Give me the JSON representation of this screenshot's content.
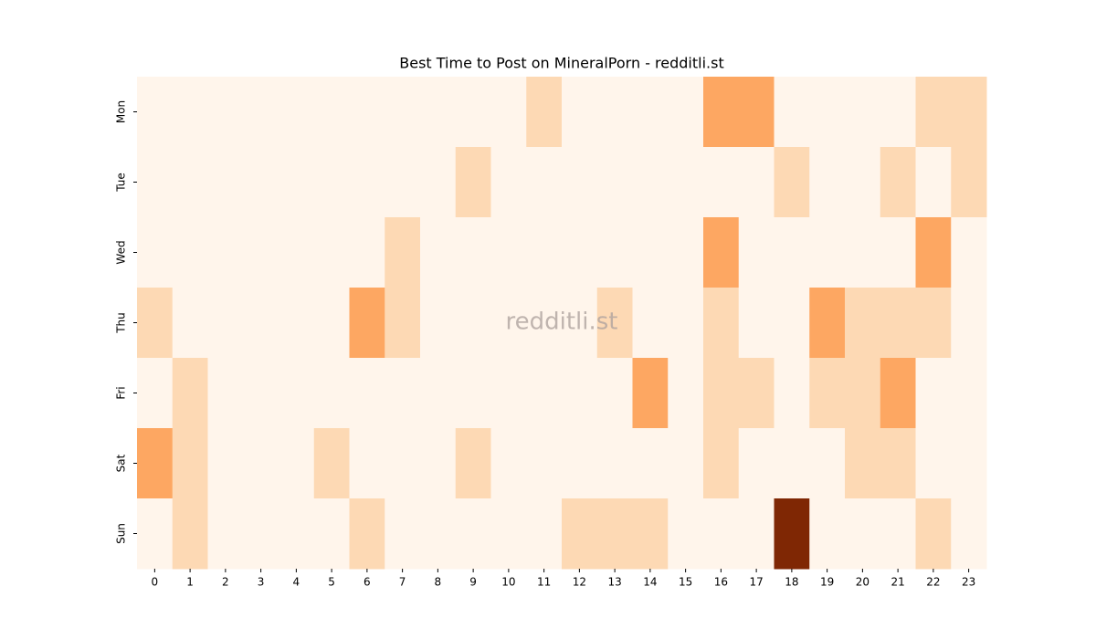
{
  "chart_data": {
    "type": "heatmap",
    "title": "Best Time to Post on MineralPorn - redditli.st",
    "watermark": "redditli.st",
    "x": [
      0,
      1,
      2,
      3,
      4,
      5,
      6,
      7,
      8,
      9,
      10,
      11,
      12,
      13,
      14,
      15,
      16,
      17,
      18,
      19,
      20,
      21,
      22,
      23
    ],
    "categories": [
      "Mon",
      "Tue",
      "Wed",
      "Thu",
      "Fri",
      "Sat",
      "Sun"
    ],
    "values": [
      [
        0,
        0,
        0,
        0,
        0,
        0,
        0,
        0,
        0,
        0,
        0,
        1,
        0,
        0,
        0,
        0,
        2,
        2,
        0,
        0,
        0,
        0,
        1,
        1
      ],
      [
        0,
        0,
        0,
        0,
        0,
        0,
        0,
        0,
        0,
        1,
        0,
        0,
        0,
        0,
        0,
        0,
        0,
        0,
        1,
        0,
        0,
        1,
        0,
        1
      ],
      [
        0,
        0,
        0,
        0,
        0,
        0,
        0,
        1,
        0,
        0,
        0,
        0,
        0,
        0,
        0,
        0,
        2,
        0,
        0,
        0,
        0,
        0,
        2,
        0
      ],
      [
        1,
        0,
        0,
        0,
        0,
        0,
        2,
        1,
        0,
        0,
        0,
        0,
        0,
        1,
        0,
        0,
        1,
        0,
        0,
        2,
        1,
        1,
        1,
        0
      ],
      [
        0,
        1,
        0,
        0,
        0,
        0,
        0,
        0,
        0,
        0,
        0,
        0,
        0,
        0,
        2,
        0,
        1,
        1,
        0,
        1,
        1,
        2,
        0,
        0
      ],
      [
        2,
        1,
        0,
        0,
        0,
        1,
        0,
        0,
        0,
        1,
        0,
        0,
        0,
        0,
        0,
        0,
        1,
        0,
        0,
        0,
        1,
        1,
        0,
        0
      ],
      [
        0,
        1,
        0,
        0,
        0,
        0,
        1,
        0,
        0,
        0,
        0,
        0,
        1,
        1,
        1,
        0,
        0,
        0,
        5,
        0,
        0,
        0,
        1,
        0
      ]
    ],
    "colormap": [
      "#fff5eb",
      "#fee6ce",
      "#fdd0a2",
      "#fdae6b",
      "#fd8d3c",
      "#f16913",
      "#d94801",
      "#a63603",
      "#7f2704"
    ]
  }
}
